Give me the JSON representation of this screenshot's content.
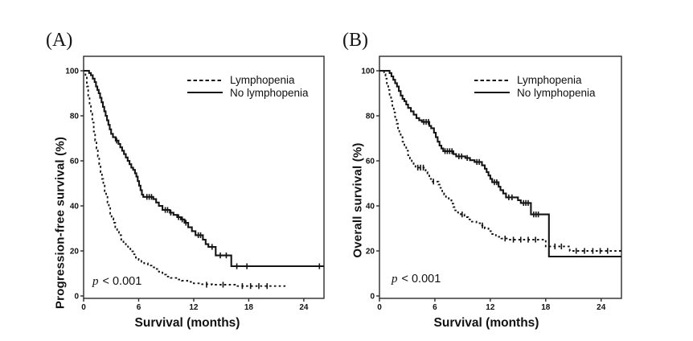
{
  "figure": {
    "background": "#ffffff",
    "line_color": "#141414",
    "axis_color": "#2b2b2b"
  },
  "chart_data": [
    {
      "type": "line",
      "subtype": "kaplan-meier-step",
      "panel_label": "(A)",
      "xlabel": "Survival (months)",
      "ylabel": "Progression-free survival (%)",
      "xlim": [
        0,
        26.2
      ],
      "ylim": [
        0,
        100
      ],
      "xticks": [
        0,
        6,
        12,
        18,
        24
      ],
      "yticks": [
        0,
        20,
        40,
        60,
        80,
        100
      ],
      "grid": false,
      "legend_position": "top-right-inside",
      "p_label": "p",
      "p_text": "< 0.001",
      "series": [
        {
          "name": "Lymphopenia",
          "style": "dashed",
          "points": [
            [
              0,
              100
            ],
            [
              0.2,
              97
            ],
            [
              0.35,
              93
            ],
            [
              0.5,
              89
            ],
            [
              0.65,
              85
            ],
            [
              0.8,
              81
            ],
            [
              0.95,
              77
            ],
            [
              1.1,
              73
            ],
            [
              1.25,
              69
            ],
            [
              1.4,
              65.5
            ],
            [
              1.55,
              62
            ],
            [
              1.7,
              58.5
            ],
            [
              1.85,
              55
            ],
            [
              2.0,
              52
            ],
            [
              2.15,
              49
            ],
            [
              2.3,
              46.5
            ],
            [
              2.45,
              44
            ],
            [
              2.6,
              41.5
            ],
            [
              2.75,
              39
            ],
            [
              2.9,
              36.5
            ],
            [
              3.05,
              34.5
            ],
            [
              3.25,
              32.5
            ],
            [
              3.45,
              30.5
            ],
            [
              3.65,
              28.5
            ],
            [
              3.85,
              27
            ],
            [
              4.1,
              25
            ],
            [
              4.35,
              23.5
            ],
            [
              4.6,
              22
            ],
            [
              4.85,
              21
            ],
            [
              5.1,
              19.8
            ],
            [
              5.4,
              18.5
            ],
            [
              5.7,
              17
            ],
            [
              6.0,
              16
            ],
            [
              6.3,
              15.2
            ],
            [
              6.6,
              14.5
            ],
            [
              7.0,
              13.5
            ],
            [
              7.4,
              12.7
            ],
            [
              7.8,
              12
            ],
            [
              8.2,
              10.8
            ],
            [
              8.6,
              9.5
            ],
            [
              9.0,
              8.6
            ],
            [
              9.5,
              8
            ],
            [
              10.1,
              7.3
            ],
            [
              10.7,
              6.8
            ],
            [
              11.3,
              6.3
            ],
            [
              12.0,
              5.6
            ],
            [
              12.8,
              5.2
            ],
            [
              14.0,
              5
            ],
            [
              16.5,
              4.4
            ],
            [
              22.2,
              4.4
            ]
          ],
          "censor_marks": [
            [
              13.4,
              5
            ],
            [
              15.2,
              5
            ],
            [
              17.3,
              4.4
            ],
            [
              18.2,
              4.4
            ],
            [
              19.1,
              4.4
            ],
            [
              20.0,
              4.4
            ]
          ]
        },
        {
          "name": "No lymphopenia",
          "style": "solid",
          "points": [
            [
              0,
              100
            ],
            [
              0.6,
              99
            ],
            [
              0.8,
              98
            ],
            [
              1.0,
              96.5
            ],
            [
              1.2,
              95
            ],
            [
              1.35,
              93
            ],
            [
              1.5,
              91.5
            ],
            [
              1.65,
              90
            ],
            [
              1.8,
              88
            ],
            [
              1.95,
              86
            ],
            [
              2.1,
              84
            ],
            [
              2.25,
              82
            ],
            [
              2.4,
              80
            ],
            [
              2.55,
              78
            ],
            [
              2.7,
              76
            ],
            [
              2.85,
              74
            ],
            [
              3.0,
              72
            ],
            [
              3.2,
              70.5
            ],
            [
              3.5,
              69
            ],
            [
              3.8,
              67.5
            ],
            [
              4.0,
              66
            ],
            [
              4.2,
              64.5
            ],
            [
              4.4,
              63
            ],
            [
              4.6,
              61.5
            ],
            [
              4.8,
              60
            ],
            [
              5.0,
              58.5
            ],
            [
              5.2,
              57
            ],
            [
              5.4,
              56
            ],
            [
              5.6,
              54.5
            ],
            [
              5.75,
              53
            ],
            [
              5.9,
              51
            ],
            [
              6.05,
              49
            ],
            [
              6.2,
              47
            ],
            [
              6.35,
              45
            ],
            [
              6.5,
              44
            ],
            [
              7.6,
              43
            ],
            [
              7.9,
              41.5
            ],
            [
              8.2,
              40
            ],
            [
              8.6,
              38.2
            ],
            [
              9.4,
              37
            ],
            [
              9.8,
              36
            ],
            [
              10.2,
              35
            ],
            [
              10.6,
              34
            ],
            [
              11.0,
              32.5
            ],
            [
              11.4,
              30.5
            ],
            [
              11.8,
              28.8
            ],
            [
              12.2,
              27
            ],
            [
              13.0,
              25
            ],
            [
              13.3,
              23
            ],
            [
              13.6,
              21.8
            ],
            [
              14.4,
              18
            ],
            [
              16.1,
              13.2
            ],
            [
              26.2,
              13.2
            ]
          ],
          "censor_marks": [
            [
              3.6,
              69
            ],
            [
              6.9,
              44
            ],
            [
              7.15,
              44
            ],
            [
              7.4,
              44
            ],
            [
              8.9,
              38.2
            ],
            [
              9.15,
              38.2
            ],
            [
              9.5,
              37
            ],
            [
              10.35,
              35
            ],
            [
              10.75,
              34
            ],
            [
              11.15,
              32.5
            ],
            [
              12.5,
              27
            ],
            [
              12.75,
              27
            ],
            [
              14.0,
              21.8
            ],
            [
              14.9,
              18
            ],
            [
              15.55,
              18
            ],
            [
              16.7,
              13.2
            ],
            [
              17.8,
              13.2
            ],
            [
              25.7,
              13.2
            ]
          ]
        }
      ]
    },
    {
      "type": "line",
      "subtype": "kaplan-meier-step",
      "panel_label": "(B)",
      "xlabel": "Survival (months)",
      "ylabel": "Overall survival (%)",
      "xlim": [
        0,
        26.2
      ],
      "ylim": [
        0,
        100
      ],
      "xticks": [
        0,
        6,
        12,
        18,
        24
      ],
      "yticks": [
        0,
        20,
        40,
        60,
        80,
        100
      ],
      "grid": false,
      "legend_position": "top-right-inside",
      "p_label": "p",
      "p_text": "< 0.001",
      "series": [
        {
          "name": "Lymphopenia",
          "style": "dashed",
          "points": [
            [
              0,
              100
            ],
            [
              0.5,
              98.5
            ],
            [
              0.65,
              96.5
            ],
            [
              0.8,
              94
            ],
            [
              0.95,
              91.5
            ],
            [
              1.1,
              89
            ],
            [
              1.25,
              86.5
            ],
            [
              1.4,
              84
            ],
            [
              1.55,
              81.5
            ],
            [
              1.7,
              79
            ],
            [
              1.85,
              76.5
            ],
            [
              2.0,
              74.5
            ],
            [
              2.15,
              72.5
            ],
            [
              2.3,
              70.5
            ],
            [
              2.5,
              68.5
            ],
            [
              2.7,
              66.5
            ],
            [
              2.9,
              64.5
            ],
            [
              3.1,
              62.5
            ],
            [
              3.3,
              61
            ],
            [
              3.5,
              59.5
            ],
            [
              3.7,
              58
            ],
            [
              3.9,
              57
            ],
            [
              5.0,
              55
            ],
            [
              5.2,
              53.5
            ],
            [
              5.4,
              52
            ],
            [
              5.6,
              50.8
            ],
            [
              6.4,
              49.5
            ],
            [
              6.6,
              48
            ],
            [
              6.8,
              46.5
            ],
            [
              7.0,
              45
            ],
            [
              7.2,
              44
            ],
            [
              7.5,
              42.5
            ],
            [
              7.8,
              41
            ],
            [
              8.0,
              39.5
            ],
            [
              8.2,
              38
            ],
            [
              8.5,
              37
            ],
            [
              8.8,
              36.2
            ],
            [
              9.2,
              35
            ],
            [
              9.6,
              34
            ],
            [
              10.0,
              33
            ],
            [
              10.5,
              32.3
            ],
            [
              11.0,
              31.3
            ],
            [
              11.4,
              30
            ],
            [
              11.8,
              28.8
            ],
            [
              12.2,
              27.5
            ],
            [
              12.6,
              26.3
            ],
            [
              13.2,
              25.5
            ],
            [
              14.0,
              25
            ],
            [
              18.0,
              22
            ],
            [
              20.6,
              20
            ],
            [
              26.2,
              20
            ]
          ],
          "censor_marks": [
            [
              4.15,
              57
            ],
            [
              4.45,
              57
            ],
            [
              4.75,
              57
            ],
            [
              5.85,
              50.8
            ],
            [
              8.95,
              36.2
            ],
            [
              11.15,
              31.3
            ],
            [
              13.6,
              25.5
            ],
            [
              14.5,
              25
            ],
            [
              15.3,
              25
            ],
            [
              16.1,
              25
            ],
            [
              16.9,
              25
            ],
            [
              19.0,
              22
            ],
            [
              19.7,
              22
            ],
            [
              21.3,
              20
            ],
            [
              22.2,
              20
            ],
            [
              23.1,
              20
            ],
            [
              23.9,
              20
            ],
            [
              24.7,
              20
            ]
          ]
        },
        {
          "name": "No lymphopenia",
          "style": "solid",
          "points": [
            [
              0,
              100
            ],
            [
              1.1,
              99
            ],
            [
              1.3,
              97.5
            ],
            [
              1.5,
              96
            ],
            [
              1.7,
              94.5
            ],
            [
              1.9,
              93
            ],
            [
              2.1,
              91
            ],
            [
              2.3,
              89
            ],
            [
              2.5,
              87.5
            ],
            [
              2.7,
              86.5
            ],
            [
              2.9,
              85
            ],
            [
              3.1,
              83.5
            ],
            [
              3.4,
              82
            ],
            [
              3.7,
              80.5
            ],
            [
              4.0,
              79
            ],
            [
              4.3,
              78
            ],
            [
              4.6,
              77.3
            ],
            [
              5.4,
              75.5
            ],
            [
              5.6,
              74.5
            ],
            [
              5.9,
              72.5
            ],
            [
              6.1,
              70.5
            ],
            [
              6.3,
              68.5
            ],
            [
              6.5,
              66.8
            ],
            [
              6.7,
              65.5
            ],
            [
              6.9,
              64.3
            ],
            [
              8.0,
              63
            ],
            [
              8.3,
              62
            ],
            [
              9.3,
              61.3
            ],
            [
              9.8,
              60.3
            ],
            [
              10.3,
              59.5
            ],
            [
              11.1,
              58
            ],
            [
              11.4,
              56.5
            ],
            [
              11.6,
              55
            ],
            [
              11.8,
              53.5
            ],
            [
              12.0,
              52
            ],
            [
              12.2,
              50.5
            ],
            [
              12.9,
              48.5
            ],
            [
              13.1,
              47
            ],
            [
              13.4,
              45.5
            ],
            [
              13.7,
              43.8
            ],
            [
              15.0,
              42.5
            ],
            [
              15.3,
              41.3
            ],
            [
              16.4,
              36.2
            ],
            [
              18.35,
              17.5
            ],
            [
              26.2,
              17.5
            ]
          ],
          "censor_marks": [
            [
              4.8,
              77.3
            ],
            [
              5.05,
              77.3
            ],
            [
              5.3,
              77.3
            ],
            [
              7.1,
              64.3
            ],
            [
              7.35,
              64.3
            ],
            [
              7.6,
              64.3
            ],
            [
              7.85,
              64.3
            ],
            [
              8.6,
              62
            ],
            [
              8.9,
              62
            ],
            [
              9.5,
              61.3
            ],
            [
              10.55,
              59.5
            ],
            [
              10.8,
              59.5
            ],
            [
              12.45,
              50.5
            ],
            [
              12.7,
              50.5
            ],
            [
              14.0,
              43.8
            ],
            [
              14.35,
              43.8
            ],
            [
              15.6,
              41.3
            ],
            [
              15.85,
              41.3
            ],
            [
              16.1,
              41.3
            ],
            [
              16.7,
              36.2
            ],
            [
              16.95,
              36.2
            ],
            [
              17.2,
              36.2
            ]
          ]
        }
      ]
    }
  ]
}
